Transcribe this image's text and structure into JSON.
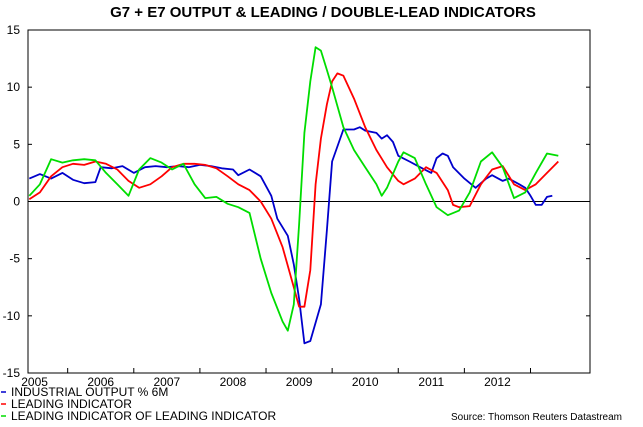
{
  "chart_data": {
    "type": "line",
    "title": "G7 + E7 OUTPUT & LEADING / DOUBLE-LEAD INDICATORS",
    "xlabel": "",
    "ylabel": "",
    "ylim": [
      -15,
      15
    ],
    "yticks": [
      "15",
      "10",
      "5",
      "0",
      "-5",
      "-10",
      "-15"
    ],
    "ytick_values": [
      15,
      10,
      5,
      0,
      -5,
      -10,
      -15
    ],
    "xlim": [
      2004.4,
      2012.9
    ],
    "xticks": [
      "2005",
      "2006",
      "2007",
      "2008",
      "2009",
      "2010",
      "2011",
      "2012"
    ],
    "xtick_values": [
      2004.92,
      2005.92,
      2006.92,
      2007.92,
      2008.92,
      2009.92,
      2010.92,
      2011.92
    ],
    "zero_line": true,
    "source": "Source: Thomson Reuters Datastream",
    "series": [
      {
        "name": "INDUSTRIAL OUTPUT % 6M",
        "color": "#0000cc",
        "points": [
          [
            2004.42,
            2.0
          ],
          [
            2004.58,
            2.4
          ],
          [
            2004.75,
            2.0
          ],
          [
            2004.92,
            2.5
          ],
          [
            2005.08,
            1.9
          ],
          [
            2005.25,
            1.6
          ],
          [
            2005.42,
            1.7
          ],
          [
            2005.5,
            3.0
          ],
          [
            2005.67,
            2.9
          ],
          [
            2005.83,
            3.1
          ],
          [
            2006.0,
            2.5
          ],
          [
            2006.17,
            3.0
          ],
          [
            2006.33,
            3.1
          ],
          [
            2006.5,
            3.0
          ],
          [
            2006.67,
            3.1
          ],
          [
            2006.83,
            3.0
          ],
          [
            2007.0,
            3.2
          ],
          [
            2007.17,
            3.1
          ],
          [
            2007.33,
            2.9
          ],
          [
            2007.5,
            2.8
          ],
          [
            2007.58,
            2.3
          ],
          [
            2007.75,
            2.8
          ],
          [
            2007.92,
            2.2
          ],
          [
            2008.08,
            0.5
          ],
          [
            2008.17,
            -1.5
          ],
          [
            2008.33,
            -3.0
          ],
          [
            2008.42,
            -5.5
          ],
          [
            2008.5,
            -8.5
          ],
          [
            2008.58,
            -12.4
          ],
          [
            2008.67,
            -12.2
          ],
          [
            2008.83,
            -9.0
          ],
          [
            2008.92,
            -2.5
          ],
          [
            2009.0,
            3.5
          ],
          [
            2009.17,
            6.3
          ],
          [
            2009.33,
            6.3
          ],
          [
            2009.42,
            6.5
          ],
          [
            2009.5,
            6.2
          ],
          [
            2009.67,
            6.0
          ],
          [
            2009.75,
            5.5
          ],
          [
            2009.83,
            5.8
          ],
          [
            2009.92,
            5.2
          ],
          [
            2010.0,
            4.0
          ],
          [
            2010.17,
            3.5
          ],
          [
            2010.33,
            3.0
          ],
          [
            2010.5,
            2.5
          ],
          [
            2010.58,
            3.8
          ],
          [
            2010.67,
            4.2
          ],
          [
            2010.75,
            4.0
          ],
          [
            2010.83,
            3.0
          ],
          [
            2011.0,
            2.0
          ],
          [
            2011.17,
            1.2
          ],
          [
            2011.33,
            2.0
          ],
          [
            2011.42,
            2.3
          ],
          [
            2011.58,
            1.8
          ],
          [
            2011.67,
            2.0
          ],
          [
            2011.83,
            1.5
          ],
          [
            2011.92,
            1.2
          ],
          [
            2012.0,
            0.5
          ],
          [
            2012.08,
            -0.3
          ],
          [
            2012.17,
            -0.3
          ],
          [
            2012.25,
            0.4
          ],
          [
            2012.33,
            0.5
          ]
        ]
      },
      {
        "name": "LEADING INDICATOR",
        "color": "#ff0000",
        "points": [
          [
            2004.42,
            0.2
          ],
          [
            2004.58,
            0.8
          ],
          [
            2004.75,
            2.2
          ],
          [
            2004.92,
            3.0
          ],
          [
            2005.08,
            3.3
          ],
          [
            2005.25,
            3.2
          ],
          [
            2005.42,
            3.5
          ],
          [
            2005.58,
            3.3
          ],
          [
            2005.75,
            2.8
          ],
          [
            2005.92,
            1.8
          ],
          [
            2006.08,
            1.2
          ],
          [
            2006.25,
            1.5
          ],
          [
            2006.42,
            2.2
          ],
          [
            2006.58,
            3.0
          ],
          [
            2006.75,
            3.3
          ],
          [
            2006.92,
            3.3
          ],
          [
            2007.08,
            3.2
          ],
          [
            2007.25,
            2.9
          ],
          [
            2007.42,
            2.2
          ],
          [
            2007.58,
            1.5
          ],
          [
            2007.75,
            1.0
          ],
          [
            2007.92,
            0.0
          ],
          [
            2008.08,
            -1.5
          ],
          [
            2008.25,
            -4.0
          ],
          [
            2008.42,
            -7.5
          ],
          [
            2008.5,
            -9.2
          ],
          [
            2008.58,
            -9.2
          ],
          [
            2008.67,
            -6.0
          ],
          [
            2008.75,
            1.5
          ],
          [
            2008.83,
            5.5
          ],
          [
            2008.92,
            8.5
          ],
          [
            2009.0,
            10.5
          ],
          [
            2009.08,
            11.2
          ],
          [
            2009.17,
            11.0
          ],
          [
            2009.33,
            9.0
          ],
          [
            2009.5,
            6.5
          ],
          [
            2009.67,
            4.5
          ],
          [
            2009.83,
            3.0
          ],
          [
            2010.0,
            1.8
          ],
          [
            2010.08,
            1.5
          ],
          [
            2010.25,
            2.0
          ],
          [
            2010.42,
            3.0
          ],
          [
            2010.58,
            2.5
          ],
          [
            2010.75,
            1.0
          ],
          [
            2010.83,
            -0.3
          ],
          [
            2010.92,
            -0.5
          ],
          [
            2011.08,
            -0.4
          ],
          [
            2011.25,
            1.5
          ],
          [
            2011.42,
            2.8
          ],
          [
            2011.58,
            3.1
          ],
          [
            2011.75,
            1.5
          ],
          [
            2011.92,
            1.0
          ],
          [
            2012.08,
            1.5
          ],
          [
            2012.25,
            2.5
          ],
          [
            2012.42,
            3.5
          ]
        ]
      },
      {
        "name": "LEADING INDICATOR OF LEADING INDICATOR",
        "color": "#00dd00",
        "points": [
          [
            2004.42,
            0.5
          ],
          [
            2004.58,
            1.5
          ],
          [
            2004.75,
            3.7
          ],
          [
            2004.92,
            3.4
          ],
          [
            2005.08,
            3.6
          ],
          [
            2005.25,
            3.7
          ],
          [
            2005.42,
            3.6
          ],
          [
            2005.58,
            2.5
          ],
          [
            2005.75,
            1.5
          ],
          [
            2005.92,
            0.5
          ],
          [
            2006.08,
            2.8
          ],
          [
            2006.25,
            3.8
          ],
          [
            2006.42,
            3.4
          ],
          [
            2006.58,
            2.8
          ],
          [
            2006.75,
            3.3
          ],
          [
            2006.92,
            1.5
          ],
          [
            2007.08,
            0.3
          ],
          [
            2007.25,
            0.4
          ],
          [
            2007.42,
            -0.2
          ],
          [
            2007.58,
            -0.5
          ],
          [
            2007.75,
            -1.0
          ],
          [
            2007.92,
            -5.0
          ],
          [
            2008.08,
            -8.0
          ],
          [
            2008.25,
            -10.5
          ],
          [
            2008.33,
            -11.3
          ],
          [
            2008.42,
            -9.0
          ],
          [
            2008.5,
            -2.0
          ],
          [
            2008.58,
            6.0
          ],
          [
            2008.67,
            10.5
          ],
          [
            2008.75,
            13.5
          ],
          [
            2008.83,
            13.2
          ],
          [
            2008.92,
            11.5
          ],
          [
            2009.0,
            10.0
          ],
          [
            2009.17,
            6.5
          ],
          [
            2009.33,
            4.5
          ],
          [
            2009.5,
            3.0
          ],
          [
            2009.67,
            1.5
          ],
          [
            2009.75,
            0.5
          ],
          [
            2009.83,
            1.2
          ],
          [
            2010.0,
            3.5
          ],
          [
            2010.08,
            4.3
          ],
          [
            2010.25,
            3.8
          ],
          [
            2010.42,
            1.5
          ],
          [
            2010.58,
            -0.5
          ],
          [
            2010.75,
            -1.2
          ],
          [
            2010.92,
            -0.8
          ],
          [
            2011.08,
            0.8
          ],
          [
            2011.25,
            3.5
          ],
          [
            2011.42,
            4.3
          ],
          [
            2011.58,
            3.0
          ],
          [
            2011.75,
            0.3
          ],
          [
            2011.92,
            0.8
          ],
          [
            2012.08,
            2.5
          ],
          [
            2012.25,
            4.2
          ],
          [
            2012.42,
            4.0
          ]
        ]
      }
    ]
  }
}
